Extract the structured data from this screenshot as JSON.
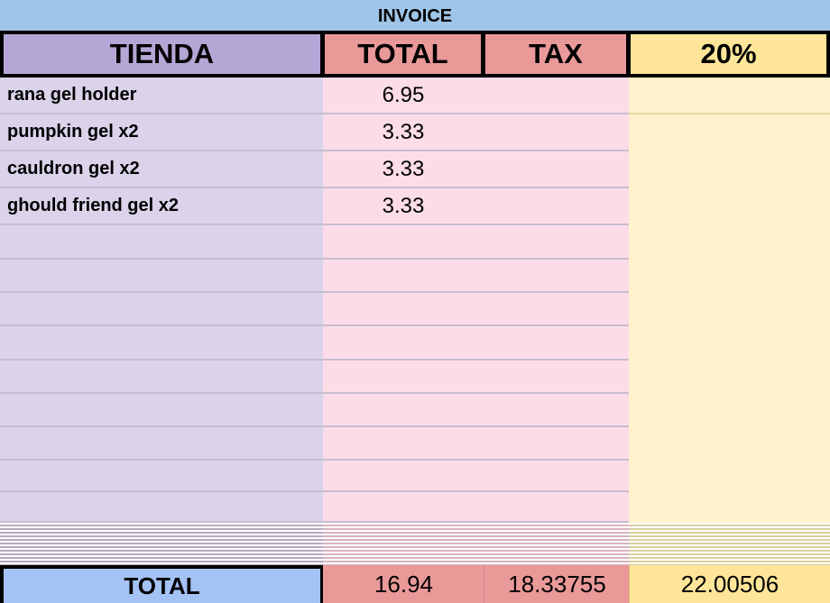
{
  "title": "INVOICE",
  "headers": [
    "TIENDA",
    "TOTAL",
    "TAX",
    "20%"
  ],
  "rows": [
    {
      "item": "rana gel holder",
      "total": "6.95"
    },
    {
      "item": "pumpkin gel x2",
      "total": "3.33"
    },
    {
      "item": "cauldron gel x2",
      "total": "3.33"
    },
    {
      "item": "ghould friend gel x2",
      "total": "3.33"
    }
  ],
  "footer": {
    "label": "TOTAL",
    "total": "16.94",
    "tax": "18.33755",
    "pct": "22.00506"
  },
  "colors": {
    "title_bg": "#9fc5e8",
    "tienda_header": "#b4a7d6",
    "total_header": "#ea9999",
    "pct_header": "#ffe599",
    "total_label_bg": "#a4c2f4"
  }
}
